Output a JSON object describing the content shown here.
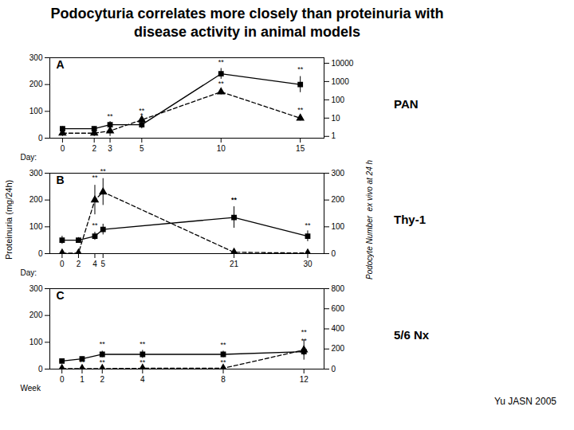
{
  "chart_data": [
    {
      "type": "line",
      "title": "Podocyturia correlates more closely than proteinuria with\ndisease activity in animal models",
      "panel": "A",
      "subtitle": "PAN",
      "x_label": "Day:",
      "x": [
        0,
        2,
        3,
        5,
        10,
        15
      ],
      "xlim": [
        -0.8,
        16.5
      ],
      "xticks": [
        0,
        2,
        3,
        5,
        10,
        15
      ],
      "ylim": [
        0,
        300
      ],
      "yticks": [
        0,
        100,
        200,
        300
      ],
      "y2lim": [
        0.8,
        20000
      ],
      "y2ticks": [
        1,
        10,
        100,
        1000,
        10000
      ],
      "log": "y2",
      "series": [
        {
          "axis": "y",
          "color": "black",
          "marker": "square",
          "line_style": "solid",
          "values": [
            35,
            35,
            50,
            50,
            240,
            200
          ],
          "errors": [
            8,
            8,
            12,
            15,
            20,
            30
          ]
        },
        {
          "axis": "y2",
          "color": "black",
          "marker": "triangle",
          "line_style": "dashed",
          "values": [
            1.5,
            1.5,
            2,
            8,
            270,
            10
          ],
          "errors": [
            0.5,
            0.5,
            1,
            3,
            80,
            3
          ]
        }
      ],
      "annotations": [
        {
          "axis": "y",
          "x": 3,
          "y": 62,
          "text": "**"
        },
        {
          "axis": "y",
          "x": 5,
          "y": 65,
          "text": "*"
        },
        {
          "axis": "y",
          "x": 10,
          "y": 262,
          "text": "**"
        },
        {
          "axis": "y",
          "x": 15,
          "y": 235,
          "text": "**"
        },
        {
          "axis": "y2",
          "x": 5,
          "y": 12,
          "text": "**"
        },
        {
          "axis": "y2",
          "x": 10,
          "y": 380,
          "text": "**"
        },
        {
          "axis": "y2",
          "x": 15,
          "y": 14,
          "text": "**"
        }
      ]
    },
    {
      "type": "line",
      "panel": "B",
      "subtitle": "Thy-1",
      "x_label": "Day:",
      "y_label": "Proteinuria (mg/24h)",
      "y2_label": "Podocyte Number  ex vivo at 24 h",
      "x": [
        0,
        2,
        4,
        5,
        21,
        30
      ],
      "xlim": [
        -1.5,
        32
      ],
      "xticks": [
        0,
        2,
        4,
        5,
        21,
        30
      ],
      "ylim": [
        0,
        300
      ],
      "yticks": [
        0,
        100,
        200,
        300
      ],
      "y2lim": [
        0,
        300
      ],
      "y2ticks": [
        0,
        100,
        200,
        300
      ],
      "series": [
        {
          "axis": "y",
          "color": "black",
          "marker": "square",
          "line_style": "solid",
          "values": [
            50,
            50,
            65,
            90,
            135,
            65
          ],
          "errors": [
            15,
            10,
            15,
            20,
            40,
            20
          ]
        },
        {
          "axis": "y2",
          "color": "black",
          "marker": "triangle",
          "line_style": "dashed",
          "values": [
            2,
            2,
            200,
            230,
            5,
            2
          ],
          "errors": [
            1,
            1,
            55,
            50,
            2,
            1
          ]
        }
      ],
      "annotations": [
        {
          "axis": "y",
          "x": 4,
          "y": 84,
          "text": "**"
        },
        {
          "axis": "y",
          "x": 21,
          "y": 180,
          "text": "**"
        },
        {
          "axis": "y2",
          "x": 4,
          "y": 262,
          "text": "**"
        },
        {
          "axis": "y2",
          "x": 5,
          "y": 288,
          "text": "**"
        },
        {
          "axis": "y2",
          "x": 21,
          "y": 180,
          "text": "**"
        },
        {
          "axis": "y2",
          "x": 30,
          "y": 84,
          "text": "**"
        }
      ]
    },
    {
      "type": "line",
      "panel": "C",
      "subtitle": "5/6 Nx",
      "x_label": "Week",
      "caption": "Yu JASN 2005",
      "x": [
        0,
        1,
        2,
        4,
        8,
        12
      ],
      "xlim": [
        -0.6,
        13
      ],
      "xticks": [
        0,
        1,
        2,
        4,
        8,
        12
      ],
      "ylim": [
        0,
        300
      ],
      "yticks": [
        0,
        100,
        200,
        300
      ],
      "y2lim": [
        0,
        800
      ],
      "y2ticks": [
        0,
        200,
        400,
        600,
        800
      ],
      "series": [
        {
          "axis": "y",
          "color": "black",
          "marker": "square",
          "line_style": "solid",
          "values": [
            30,
            38,
            55,
            55,
            55,
            65
          ],
          "errors": [
            8,
            8,
            12,
            15,
            12,
            15
          ]
        },
        {
          "axis": "y2",
          "color": "black",
          "marker": "triangle",
          "line_style": "dashed",
          "values": [
            5,
            5,
            5,
            8,
            8,
            190
          ],
          "errors": [
            2,
            2,
            2,
            3,
            3,
            100
          ]
        }
      ],
      "annotations": [
        {
          "axis": "y",
          "x": 2,
          "y": 72,
          "text": "**"
        },
        {
          "axis": "y",
          "x": 4,
          "y": 74,
          "text": "**"
        },
        {
          "axis": "y",
          "x": 8,
          "y": 71,
          "text": "**"
        },
        {
          "axis": "y",
          "x": 12,
          "y": 84,
          "text": "**"
        },
        {
          "axis": "y2",
          "x": 0,
          "y": 8,
          "text": "**"
        },
        {
          "axis": "y2",
          "x": 1,
          "y": 8,
          "text": "**"
        },
        {
          "axis": "y2",
          "x": 2,
          "y": 8,
          "text": "**"
        },
        {
          "axis": "y2",
          "x": 4,
          "y": 13,
          "text": "**"
        },
        {
          "axis": "y2",
          "x": 8,
          "y": 13,
          "text": "**"
        },
        {
          "axis": "y2",
          "x": 12,
          "y": 310,
          "text": "**"
        }
      ]
    }
  ]
}
